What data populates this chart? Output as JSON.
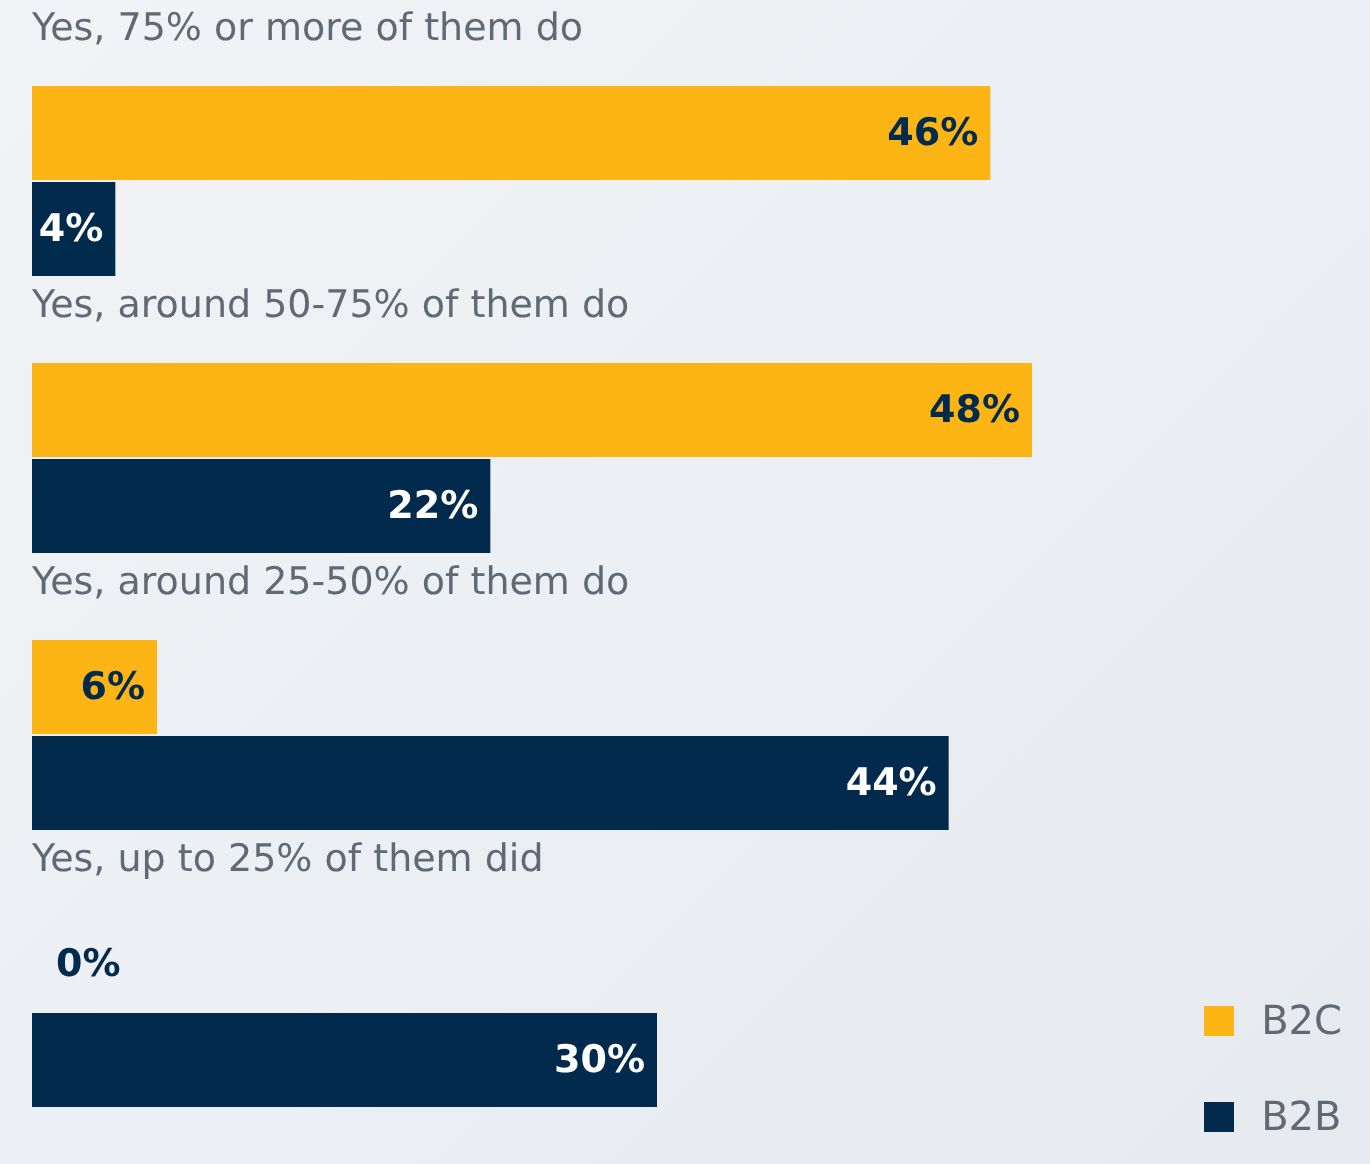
{
  "chart_data": {
    "type": "bar",
    "orientation": "horizontal",
    "categories": [
      "Yes, 75% or more of them do",
      "Yes, around 50-75% of them do",
      "Yes, around 25-50% of them do",
      "Yes, up to 25% of them did"
    ],
    "series": [
      {
        "name": "B2C",
        "color": "#fdb515",
        "values": [
          46,
          48,
          6,
          0
        ],
        "value_labels": [
          "46%",
          "48%",
          "6%",
          "0%"
        ]
      },
      {
        "name": "B2B",
        "color": "#022a4c",
        "values": [
          4,
          22,
          44,
          30
        ],
        "value_labels": [
          "4%",
          "22%",
          "44%",
          "30%"
        ]
      }
    ],
    "legend": "bottom right"
  }
}
